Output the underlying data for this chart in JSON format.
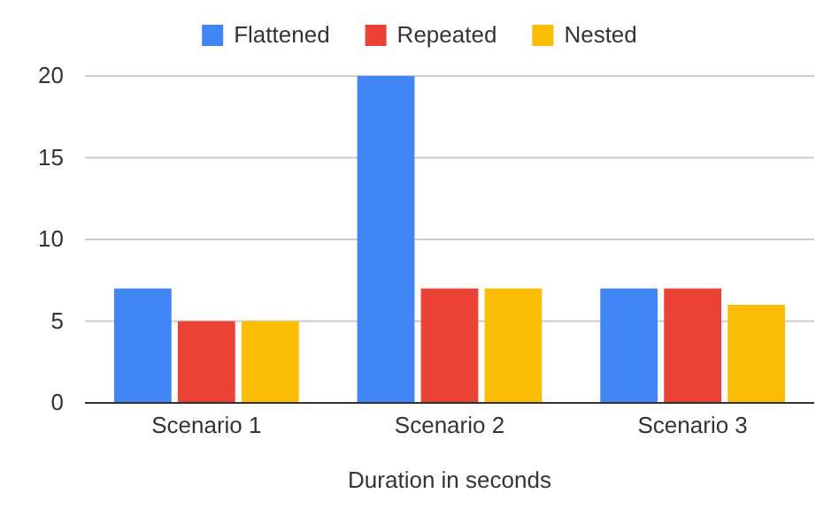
{
  "chart_data": {
    "type": "bar",
    "xlabel": "Duration in seconds",
    "categories": [
      "Scenario 1",
      "Scenario 2",
      "Scenario 3"
    ],
    "series": [
      {
        "name": "Flattened",
        "color": "#4285f4",
        "values": [
          7,
          20,
          7
        ]
      },
      {
        "name": "Repeated",
        "color": "#ea4335",
        "values": [
          5,
          7,
          7
        ]
      },
      {
        "name": "Nested",
        "color": "#fbbc04",
        "values": [
          5,
          7,
          6
        ]
      }
    ],
    "ylim": [
      0,
      20
    ],
    "yticks": [
      0,
      5,
      10,
      15,
      20
    ],
    "grid": "y",
    "legend": "top"
  }
}
